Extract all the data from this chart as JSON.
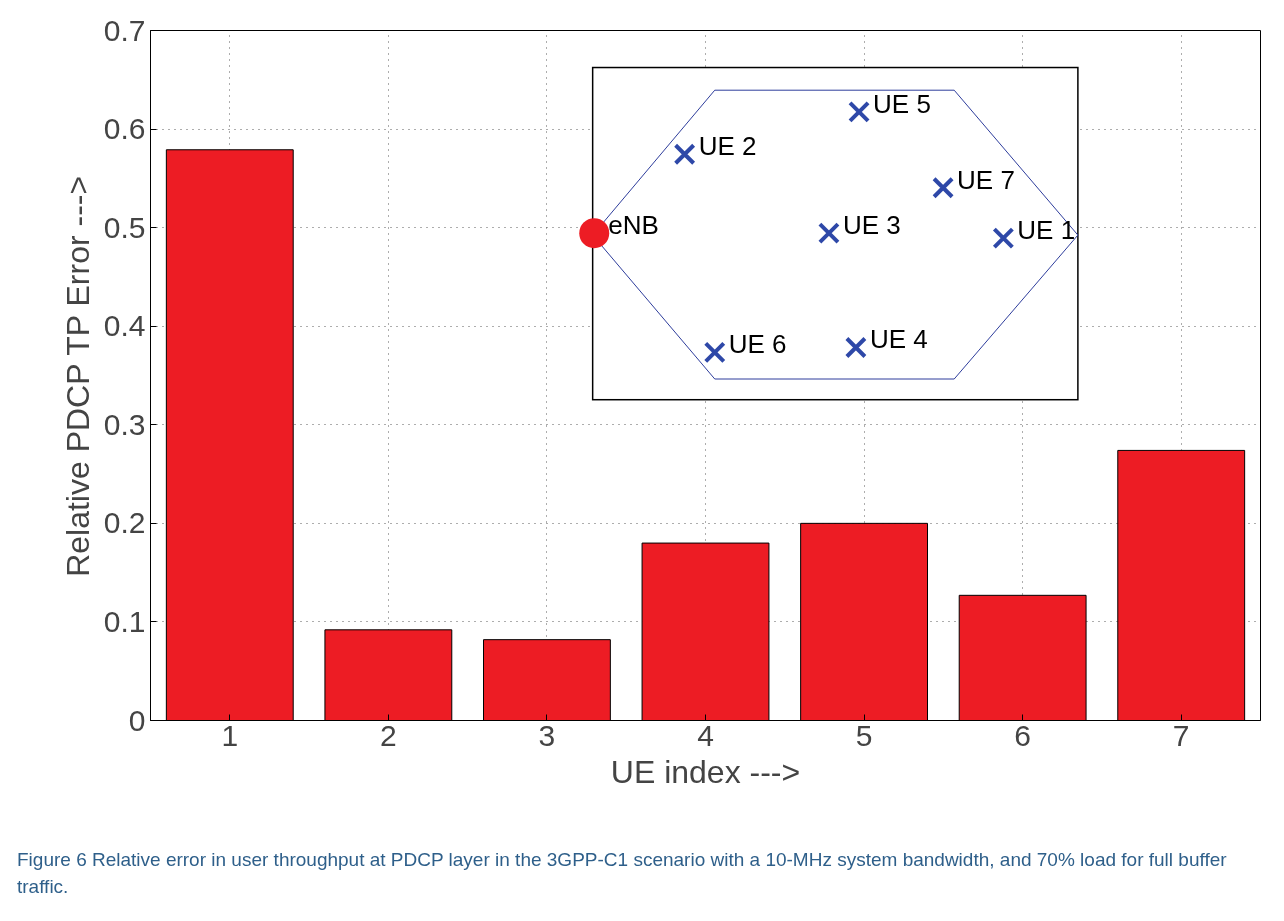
{
  "chart_data": {
    "type": "bar",
    "xlabel": "UE index --->",
    "ylabel": "Relative PDCP TP Error --->",
    "categories": [
      "1",
      "2",
      "3",
      "4",
      "5",
      "6",
      "7"
    ],
    "values": [
      0.579,
      0.092,
      0.082,
      0.18,
      0.2,
      0.127,
      0.274
    ],
    "color": "#ed1c24",
    "ylim": [
      0,
      0.7
    ],
    "yticks": [
      0,
      0.1,
      0.2,
      0.3,
      0.4,
      0.5,
      0.6,
      0.7
    ],
    "grid": true,
    "annotations": [
      "eNB",
      "UE 1",
      "UE 2",
      "UE 3",
      "UE 4",
      "UE 5",
      "UE 6",
      "UE 7",
      "Figure 6 Relative error in user throughput at PDCP layer in the 3GPP-C1 scenario with a 10-MHz system bandwidth, and 70% load for full buffer traffic."
    ]
  }
}
